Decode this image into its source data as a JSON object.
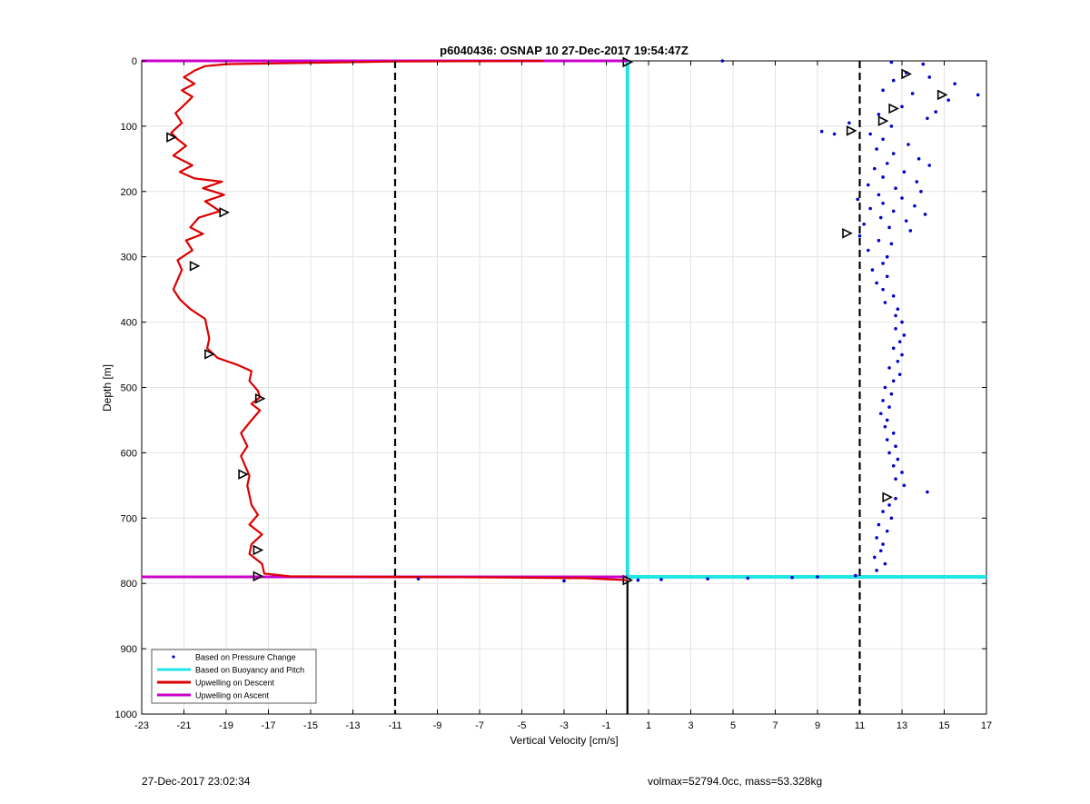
{
  "footer": {
    "left": "27-Dec-2017 23:02:34",
    "right": "volmax=52794.0cc, mass=53.328kg"
  },
  "colors": {
    "pressure": "#0000cc",
    "buoyancy": "#22e5e5",
    "descent": "#dd0000",
    "ascent": "#cc00cc",
    "grid": "#e3e3e3",
    "dashed": "#000000"
  },
  "chart_data": {
    "type": "line",
    "title": "p6040436: OSNAP 10 27-Dec-2017 19:54:47Z",
    "xlabel": "Vertical Velocity [cm/s]",
    "ylabel": "Depth [m]",
    "xlim": [
      -23,
      17
    ],
    "ylim": [
      0,
      1000
    ],
    "y_reversed": true,
    "x_ticks": [
      -23,
      -21,
      -19,
      -17,
      -15,
      -13,
      -11,
      -9,
      -7,
      -5,
      -3,
      -1,
      1,
      3,
      5,
      7,
      9,
      11,
      13,
      15,
      17
    ],
    "y_ticks": [
      0,
      100,
      200,
      300,
      400,
      500,
      600,
      700,
      800,
      900,
      1000
    ],
    "grid": true,
    "legend_position": "bottom-left",
    "legend": [
      {
        "label": "Based on Pressure Change",
        "style": "dot",
        "color": "#0000cc"
      },
      {
        "label": "Based on Buoyancy and Pitch",
        "style": "line",
        "color": "#22e5e5"
      },
      {
        "label": "Upwelling on Descent",
        "style": "line",
        "color": "#dd0000"
      },
      {
        "label": "Upwelling on Ascent",
        "style": "line",
        "color": "#cc00cc"
      }
    ],
    "reference_lines": [
      {
        "orientation": "vertical",
        "x": -11,
        "style": "dashed"
      },
      {
        "orientation": "vertical",
        "x": 11,
        "style": "dashed"
      },
      {
        "orientation": "vertical",
        "x": 0,
        "y_range": [
          795,
          1000
        ],
        "style": "solid"
      }
    ],
    "series": [
      {
        "key": "descent",
        "points": [
          [
            -4,
            0
          ],
          [
            -11,
            1
          ],
          [
            -13,
            2
          ],
          [
            -15,
            3
          ],
          [
            -17,
            4
          ],
          [
            -19,
            5
          ],
          [
            -20,
            8
          ],
          [
            -20.5,
            15
          ],
          [
            -21,
            25
          ],
          [
            -20.5,
            35
          ],
          [
            -21.1,
            45
          ],
          [
            -20.6,
            55
          ],
          [
            -20.9,
            65
          ],
          [
            -21.4,
            80
          ],
          [
            -21.1,
            95
          ],
          [
            -21.6,
            110
          ],
          [
            -21.3,
            120
          ],
          [
            -20.9,
            130
          ],
          [
            -21.5,
            145
          ],
          [
            -20.6,
            160
          ],
          [
            -21.2,
            170
          ],
          [
            -20.5,
            180
          ],
          [
            -19.2,
            185
          ],
          [
            -20.1,
            195
          ],
          [
            -19.1,
            205
          ],
          [
            -20.0,
            215
          ],
          [
            -19.3,
            230
          ],
          [
            -20.3,
            240
          ],
          [
            -20.7,
            255
          ],
          [
            -20.1,
            265
          ],
          [
            -20.9,
            275
          ],
          [
            -20.6,
            290
          ],
          [
            -21.3,
            305
          ],
          [
            -21.1,
            320
          ],
          [
            -21.3,
            335
          ],
          [
            -21.5,
            350
          ],
          [
            -21.2,
            365
          ],
          [
            -20.7,
            380
          ],
          [
            -20.0,
            395
          ],
          [
            -19.9,
            410
          ],
          [
            -19.8,
            425
          ],
          [
            -19.9,
            440
          ],
          [
            -19.4,
            455
          ],
          [
            -18.5,
            465
          ],
          [
            -17.8,
            475
          ],
          [
            -17.9,
            490
          ],
          [
            -17.5,
            505
          ],
          [
            -17.4,
            515
          ],
          [
            -17.8,
            525
          ],
          [
            -17.4,
            535
          ],
          [
            -17.8,
            550
          ],
          [
            -18.3,
            570
          ],
          [
            -18.0,
            590
          ],
          [
            -18.3,
            605
          ],
          [
            -18.1,
            620
          ],
          [
            -17.9,
            635
          ],
          [
            -18.0,
            650
          ],
          [
            -17.9,
            665
          ],
          [
            -17.8,
            680
          ],
          [
            -17.5,
            695
          ],
          [
            -17.9,
            710
          ],
          [
            -17.3,
            725
          ],
          [
            -17.8,
            740
          ],
          [
            -17.9,
            755
          ],
          [
            -17.3,
            770
          ],
          [
            -17.2,
            785
          ],
          [
            -16.0,
            789
          ],
          [
            -11,
            790
          ],
          [
            -6,
            791
          ],
          [
            -2,
            792
          ],
          [
            0,
            795
          ]
        ]
      },
      {
        "key": "ascent",
        "points": [
          [
            -23,
            0
          ],
          [
            0,
            0
          ],
          [
            -23,
            790
          ],
          [
            0,
            790
          ]
        ]
      },
      {
        "key": "buoyancy",
        "points": [
          [
            0,
            0
          ],
          [
            0,
            790
          ],
          [
            17,
            790
          ]
        ]
      },
      {
        "key": "pressure",
        "points": [
          [
            4.5,
            0
          ],
          [
            12.5,
            2
          ],
          [
            14.0,
            5
          ],
          [
            13.2,
            18
          ],
          [
            14.3,
            25
          ],
          [
            12.6,
            30
          ],
          [
            15.5,
            35
          ],
          [
            12.1,
            45
          ],
          [
            13.5,
            50
          ],
          [
            16.6,
            52
          ],
          [
            15.2,
            60
          ],
          [
            13.0,
            70
          ],
          [
            14.6,
            78
          ],
          [
            11.9,
            82
          ],
          [
            14.2,
            88
          ],
          [
            10.5,
            95
          ],
          [
            12.5,
            100
          ],
          [
            9.2,
            108
          ],
          [
            9.8,
            112
          ],
          [
            11.5,
            112
          ],
          [
            12.1,
            120
          ],
          [
            13.3,
            128
          ],
          [
            11.8,
            135
          ],
          [
            12.6,
            142
          ],
          [
            13.8,
            150
          ],
          [
            12.3,
            157
          ],
          [
            14.3,
            160
          ],
          [
            11.7,
            165
          ],
          [
            13.1,
            170
          ],
          [
            12.1,
            178
          ],
          [
            13.7,
            185
          ],
          [
            11.4,
            190
          ],
          [
            12.7,
            195
          ],
          [
            13.9,
            200
          ],
          [
            11.9,
            205
          ],
          [
            13.0,
            210
          ],
          [
            10.9,
            212
          ],
          [
            12.1,
            218
          ],
          [
            13.6,
            222
          ],
          [
            11.5,
            226
          ],
          [
            12.6,
            230
          ],
          [
            14.1,
            235
          ],
          [
            12.0,
            240
          ],
          [
            13.2,
            245
          ],
          [
            11.2,
            250
          ],
          [
            12.4,
            255
          ],
          [
            13.4,
            260
          ],
          [
            11.0,
            268
          ],
          [
            11.9,
            275
          ],
          [
            12.5,
            280
          ],
          [
            11.4,
            290
          ],
          [
            12.3,
            300
          ],
          [
            12.1,
            310
          ],
          [
            11.6,
            320
          ],
          [
            12.3,
            330
          ],
          [
            11.8,
            340
          ],
          [
            12.1,
            350
          ],
          [
            12.6,
            360
          ],
          [
            12.2,
            370
          ],
          [
            12.8,
            380
          ],
          [
            12.7,
            390
          ],
          [
            13.0,
            400
          ],
          [
            12.7,
            410
          ],
          [
            13.1,
            420
          ],
          [
            12.9,
            430
          ],
          [
            12.6,
            440
          ],
          [
            13.0,
            450
          ],
          [
            12.8,
            460
          ],
          [
            12.4,
            470
          ],
          [
            12.9,
            480
          ],
          [
            12.6,
            490
          ],
          [
            12.2,
            500
          ],
          [
            12.5,
            510
          ],
          [
            12.1,
            520
          ],
          [
            12.4,
            530
          ],
          [
            12.0,
            540
          ],
          [
            12.3,
            550
          ],
          [
            12.2,
            560
          ],
          [
            12.6,
            570
          ],
          [
            12.3,
            580
          ],
          [
            12.7,
            590
          ],
          [
            12.4,
            600
          ],
          [
            12.8,
            610
          ],
          [
            12.6,
            620
          ],
          [
            13.0,
            630
          ],
          [
            12.7,
            640
          ],
          [
            13.1,
            650
          ],
          [
            14.2,
            660
          ],
          [
            12.7,
            670
          ],
          [
            12.4,
            680
          ],
          [
            12.1,
            690
          ],
          [
            12.5,
            700
          ],
          [
            11.9,
            710
          ],
          [
            12.3,
            720
          ],
          [
            11.8,
            730
          ],
          [
            12.1,
            740
          ],
          [
            12.0,
            750
          ],
          [
            11.7,
            760
          ],
          [
            12.2,
            770
          ],
          [
            11.8,
            780
          ],
          [
            10.8,
            788
          ],
          [
            9.0,
            790
          ],
          [
            7.8,
            791
          ],
          [
            5.7,
            792
          ],
          [
            3.8,
            793
          ],
          [
            1.6,
            794
          ],
          [
            0.5,
            795
          ],
          [
            -3,
            796
          ],
          [
            -9.9,
            793
          ]
        ]
      }
    ],
    "markers": [
      {
        "x": 0,
        "y": 2
      },
      {
        "x": 13.2,
        "y": 20
      },
      {
        "x": 14.9,
        "y": 52
      },
      {
        "x": 12.6,
        "y": 73
      },
      {
        "x": 12.1,
        "y": 92
      },
      {
        "x": -21.6,
        "y": 117
      },
      {
        "x": -19.1,
        "y": 232
      },
      {
        "x": -20.5,
        "y": 314
      },
      {
        "x": -19.8,
        "y": 449
      },
      {
        "x": -17.4,
        "y": 517
      },
      {
        "x": -18.2,
        "y": 633
      },
      {
        "x": 12.3,
        "y": 668
      },
      {
        "x": -17.5,
        "y": 749
      },
      {
        "x": -17.5,
        "y": 789
      },
      {
        "x": 10.6,
        "y": 107
      },
      {
        "x": 10.4,
        "y": 264
      },
      {
        "x": 0,
        "y": 795
      }
    ]
  }
}
